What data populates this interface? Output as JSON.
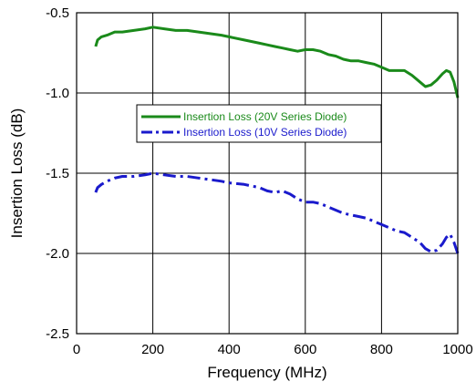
{
  "chart_data": {
    "type": "line",
    "title": "",
    "xlabel": "Frequency (MHz)",
    "ylabel": "Insertion Loss (dB)",
    "xlim": [
      0,
      1000
    ],
    "ylim": [
      -2.5,
      -0.5
    ],
    "xticks": [
      0,
      200,
      400,
      600,
      800,
      1000
    ],
    "xtick_labels": [
      "0",
      "200",
      "400",
      "600",
      "800",
      "1000"
    ],
    "yticks": [
      -0.5,
      -1.0,
      -1.5,
      -2.0,
      -2.5
    ],
    "ytick_labels": [
      "-0.5",
      "-1.0",
      "-1.5",
      "-2.0",
      "-2.5"
    ],
    "grid": true,
    "legend_position": "center",
    "series": [
      {
        "name": "Insertion Loss (20V Series Diode)",
        "color": "#1a8a1a",
        "line_style": "solid",
        "x": [
          50,
          55,
          65,
          80,
          100,
          120,
          150,
          180,
          200,
          230,
          260,
          290,
          320,
          350,
          380,
          400,
          440,
          480,
          500,
          520,
          540,
          560,
          580,
          600,
          620,
          640,
          660,
          680,
          700,
          720,
          740,
          760,
          780,
          800,
          820,
          840,
          860,
          880,
          900,
          915,
          930,
          945,
          960,
          970,
          980,
          990,
          1000
        ],
        "y": [
          -0.71,
          -0.67,
          -0.65,
          -0.64,
          -0.62,
          -0.62,
          -0.61,
          -0.6,
          -0.59,
          -0.6,
          -0.61,
          -0.61,
          -0.62,
          -0.63,
          -0.64,
          -0.65,
          -0.67,
          -0.69,
          -0.7,
          -0.71,
          -0.72,
          -0.73,
          -0.74,
          -0.73,
          -0.73,
          -0.74,
          -0.76,
          -0.77,
          -0.79,
          -0.8,
          -0.8,
          -0.81,
          -0.82,
          -0.84,
          -0.86,
          -0.86,
          -0.86,
          -0.89,
          -0.93,
          -0.96,
          -0.95,
          -0.92,
          -0.88,
          -0.86,
          -0.87,
          -0.93,
          -1.03
        ]
      },
      {
        "name": "Insertion Loss (10V Series Diode)",
        "color": "#1a1acc",
        "line_style": "dash-dot",
        "x": [
          50,
          55,
          65,
          80,
          100,
          120,
          150,
          180,
          200,
          230,
          260,
          290,
          320,
          350,
          380,
          400,
          440,
          480,
          500,
          520,
          540,
          560,
          580,
          600,
          620,
          640,
          660,
          680,
          700,
          720,
          740,
          760,
          780,
          800,
          820,
          840,
          860,
          880,
          900,
          915,
          930,
          945,
          960,
          970,
          980,
          990,
          1000
        ],
        "y": [
          -1.62,
          -1.59,
          -1.57,
          -1.55,
          -1.53,
          -1.52,
          -1.52,
          -1.51,
          -1.5,
          -1.51,
          -1.52,
          -1.52,
          -1.53,
          -1.54,
          -1.55,
          -1.56,
          -1.57,
          -1.59,
          -1.61,
          -1.62,
          -1.61,
          -1.63,
          -1.66,
          -1.68,
          -1.68,
          -1.69,
          -1.71,
          -1.73,
          -1.75,
          -1.76,
          -1.77,
          -1.78,
          -1.8,
          -1.82,
          -1.84,
          -1.86,
          -1.87,
          -1.9,
          -1.93,
          -1.97,
          -1.99,
          -1.98,
          -1.94,
          -1.9,
          -1.88,
          -1.93,
          -2.0
        ]
      }
    ]
  }
}
